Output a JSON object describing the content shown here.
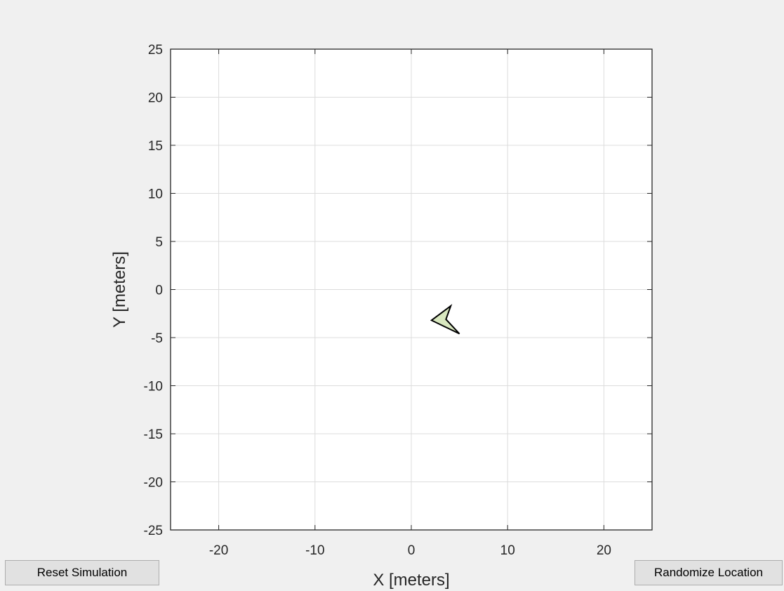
{
  "controls": {
    "reset_label": "Reset Simulation",
    "randomize_label": "Randomize Location"
  },
  "colors": {
    "background": "#f0f0f0",
    "axes_background": "#ffffff",
    "grid": "#dcdcdc",
    "axis": "#262626",
    "vehicle_fill": "#d9e8c0",
    "vehicle_edge": "#000000"
  },
  "chart_data": {
    "type": "scatter",
    "xlabel": "X [meters]",
    "ylabel": "Y [meters]",
    "xlim": [
      -25,
      25
    ],
    "ylim": [
      -25,
      25
    ],
    "xticks": [
      -20,
      -10,
      0,
      10,
      20
    ],
    "yticks": [
      25,
      20,
      15,
      10,
      5,
      0,
      -5,
      -10,
      -15,
      -20,
      -25
    ],
    "grid": true,
    "vehicle": {
      "shape": "arrowhead",
      "vertices": [
        [
          4.1,
          -1.7
        ],
        [
          2.1,
          -3.2
        ],
        [
          5.0,
          -4.6
        ],
        [
          3.6,
          -3.1
        ]
      ]
    }
  }
}
